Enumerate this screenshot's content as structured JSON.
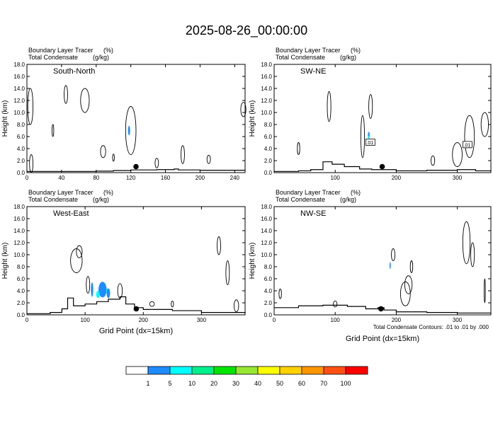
{
  "title": "2025-08-26_00:00:00",
  "panel_header": {
    "line1": "Boundary Layer Tracer",
    "line1_unit": "(%)",
    "line2": "Total Condensate",
    "line2_unit": "(g/kg)"
  },
  "ylabel": "Height (km)",
  "xlabel": "Grid Point (dx=15km)",
  "contour_note": "Total Condensate Contours: .01 to .01 by .000",
  "colorbar": {
    "colors": [
      "#ffffff",
      "#1e8cff",
      "#00ffff",
      "#00f08c",
      "#00e600",
      "#96e632",
      "#ffff00",
      "#ffd200",
      "#ff9600",
      "#ff5014",
      "#ff0000"
    ],
    "labels": [
      "1",
      "5",
      "10",
      "20",
      "30",
      "40",
      "50",
      "60",
      "70",
      "100"
    ]
  },
  "chart_data": [
    {
      "type": "contour",
      "name": "South-North",
      "xlim": [
        0,
        252
      ],
      "ylim": [
        0,
        18
      ],
      "xticks": [
        "0",
        "40",
        "80",
        "120",
        "160",
        "200",
        "240"
      ],
      "yticks": [
        "0.0",
        "2.0",
        "4.0",
        "6.0",
        "8.0",
        "10.0",
        "12.0",
        "14.0",
        "16.0",
        "18.0"
      ],
      "location_marker": {
        "x": 126,
        "y": 1.0
      },
      "terrain": [
        [
          0,
          0.2
        ],
        [
          40,
          0.2
        ],
        [
          80,
          0.25
        ],
        [
          100,
          0.35
        ],
        [
          120,
          0.45
        ],
        [
          150,
          0.5
        ],
        [
          170,
          0.6
        ],
        [
          175,
          0.45
        ],
        [
          200,
          0.4
        ],
        [
          252,
          0.35
        ]
      ],
      "labels": []
    },
    {
      "type": "contour",
      "name": "SW-NE",
      "xlim": [
        0,
        355
      ],
      "ylim": [
        0,
        18
      ],
      "xticks": [
        "100",
        "200",
        "300"
      ],
      "yticks": [
        "0.0",
        "2.0",
        "4.0",
        "6.0",
        "8.0",
        "10.0",
        "12.0",
        "14.0",
        "16.0",
        "18.0"
      ],
      "location_marker": {
        "x": 177,
        "y": 1.0
      },
      "terrain": [
        [
          0,
          0.2
        ],
        [
          40,
          0.3
        ],
        [
          60,
          0.5
        ],
        [
          80,
          1.8
        ],
        [
          95,
          1.4
        ],
        [
          115,
          1.0
        ],
        [
          140,
          0.6
        ],
        [
          160,
          0.5
        ],
        [
          200,
          0.3
        ],
        [
          250,
          0.4
        ],
        [
          300,
          0.5
        ],
        [
          330,
          0.3
        ],
        [
          355,
          0.2
        ]
      ],
      "labels": [
        ".01",
        ".01"
      ]
    },
    {
      "type": "contour",
      "name": "West-East",
      "xlim": [
        0,
        375
      ],
      "ylim": [
        0,
        18
      ],
      "xticks": [
        "0",
        "100",
        "200",
        "300"
      ],
      "yticks": [
        "0.0",
        "2.0",
        "4.0",
        "6.0",
        "8.0",
        "10.0",
        "12.0",
        "14.0",
        "16.0",
        "18.0"
      ],
      "location_marker": {
        "x": 188,
        "y": 1.0
      },
      "terrain": [
        [
          0,
          0.2
        ],
        [
          40,
          0.4
        ],
        [
          60,
          1.0
        ],
        [
          70,
          2.8
        ],
        [
          80,
          1.5
        ],
        [
          100,
          1.8
        ],
        [
          120,
          2.2
        ],
        [
          140,
          2.6
        ],
        [
          160,
          3.0
        ],
        [
          170,
          1.8
        ],
        [
          185,
          1.2
        ],
        [
          200,
          0.9
        ],
        [
          250,
          0.7
        ],
        [
          300,
          0.4
        ],
        [
          375,
          0.2
        ]
      ],
      "labels": []
    },
    {
      "type": "contour",
      "name": "NW-SE",
      "xlim": [
        0,
        355
      ],
      "ylim": [
        0,
        18
      ],
      "xticks": [
        "0",
        "100",
        "200",
        "300"
      ],
      "yticks": [
        "0.0",
        "2.0",
        "4.0",
        "6.0",
        "8.0",
        "10.0",
        "12.0",
        "14.0",
        "16.0",
        "18.0"
      ],
      "location_marker": {
        "x": 175,
        "y": 1.0
      },
      "terrain": [
        [
          0,
          1.2
        ],
        [
          40,
          1.5
        ],
        [
          80,
          1.6
        ],
        [
          120,
          1.4
        ],
        [
          150,
          1.0
        ],
        [
          170,
          1.2
        ],
        [
          180,
          0.8
        ],
        [
          200,
          0.5
        ],
        [
          250,
          0.4
        ],
        [
          300,
          0.3
        ],
        [
          355,
          0.2
        ]
      ],
      "labels": []
    }
  ]
}
